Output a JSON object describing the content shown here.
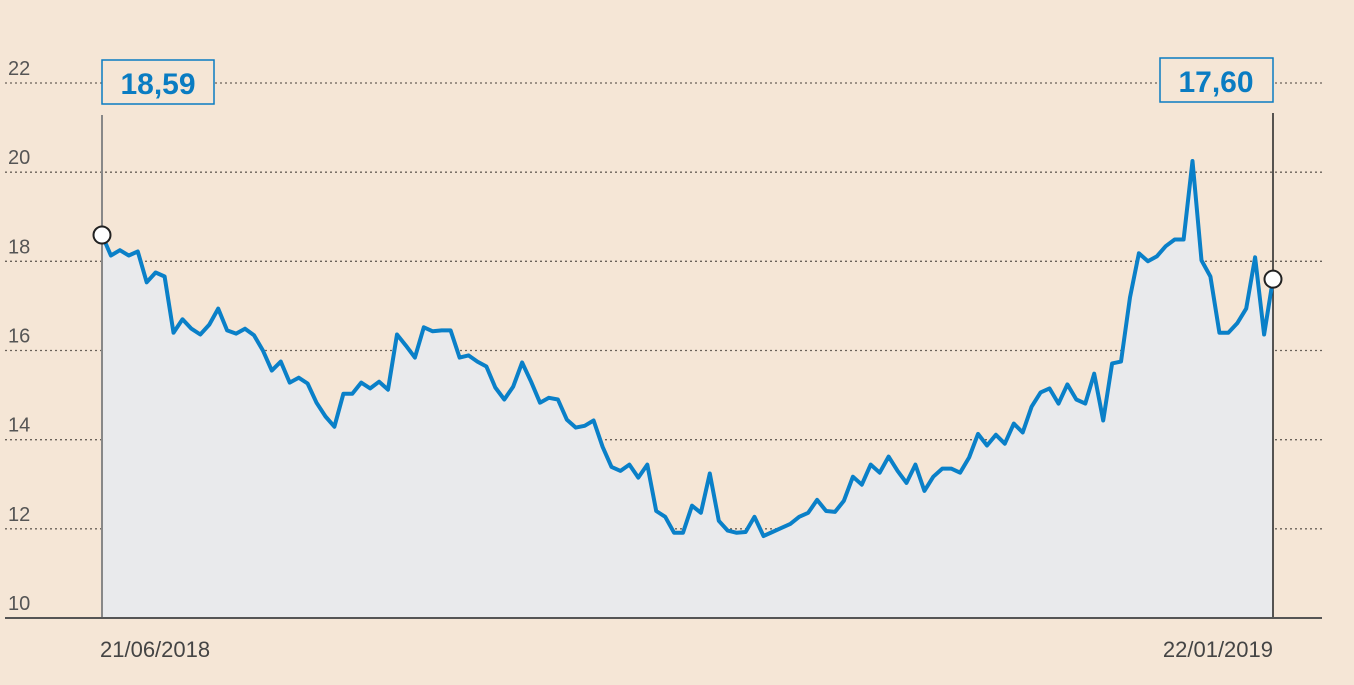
{
  "chart_data": {
    "type": "area",
    "title": "",
    "xlabel": "",
    "ylabel": "",
    "ylim": [
      10,
      22
    ],
    "y_ticks": [
      "10",
      "12",
      "14",
      "16",
      "18",
      "20",
      "22"
    ],
    "x_labels": {
      "start": "21/06/2018",
      "end": "22/01/2019"
    },
    "grid": "horizontal dotted",
    "callouts": {
      "start": "18,59",
      "end": "17,60"
    },
    "colors": {
      "line": "#0a80c8",
      "fill": "#e9eaec",
      "background": "#f5e6d6",
      "callout": "#0a7cc2"
    },
    "values": [
      18.59,
      18.13,
      18.25,
      18.13,
      18.22,
      17.53,
      17.75,
      17.66,
      16.4,
      16.7,
      16.49,
      16.36,
      16.58,
      16.94,
      16.45,
      16.38,
      16.49,
      16.34,
      16.0,
      15.55,
      15.75,
      15.28,
      15.39,
      15.26,
      14.83,
      14.52,
      14.29,
      15.03,
      15.03,
      15.28,
      15.15,
      15.3,
      15.12,
      16.36,
      16.11,
      15.84,
      16.52,
      16.43,
      16.45,
      16.45,
      15.84,
      15.89,
      15.75,
      15.64,
      15.17,
      14.9,
      15.19,
      15.73,
      15.3,
      14.83,
      14.94,
      14.9,
      14.45,
      14.27,
      14.31,
      14.43,
      13.84,
      13.39,
      13.3,
      13.44,
      13.15,
      13.44,
      12.4,
      12.27,
      11.91,
      11.91,
      12.52,
      12.36,
      13.24,
      12.18,
      11.96,
      11.91,
      11.93,
      12.27,
      11.84,
      11.93,
      12.02,
      12.11,
      12.27,
      12.36,
      12.65,
      12.4,
      12.38,
      12.63,
      13.17,
      12.99,
      13.44,
      13.26,
      13.62,
      13.3,
      13.03,
      13.44,
      12.85,
      13.17,
      13.35,
      13.35,
      13.26,
      13.6,
      14.13,
      13.87,
      14.11,
      13.91,
      14.36,
      14.16,
      14.74,
      15.06,
      15.15,
      14.81,
      15.24,
      14.9,
      14.81,
      15.48,
      14.43,
      15.71,
      15.75,
      17.19,
      18.18,
      18.0,
      18.11,
      18.34,
      18.49,
      18.49,
      20.25,
      18.02,
      17.66,
      16.4,
      16.4,
      16.61,
      16.94,
      18.09,
      16.36,
      17.6
    ]
  }
}
